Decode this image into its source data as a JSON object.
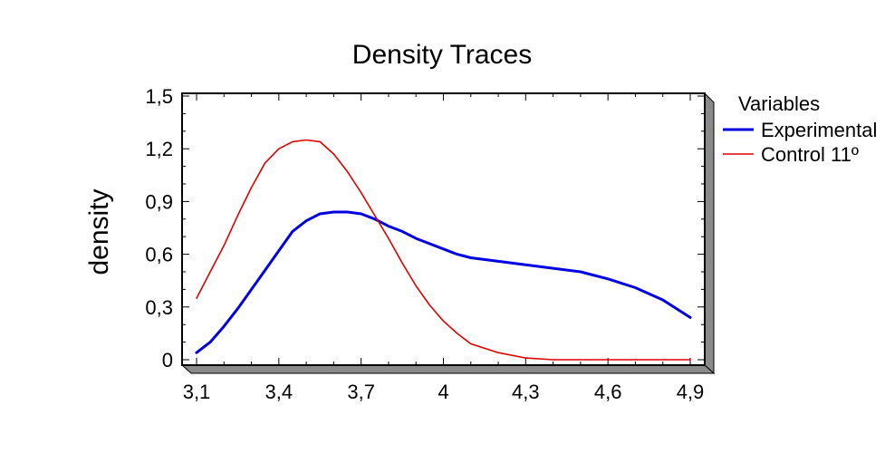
{
  "chart_data": {
    "type": "line",
    "title": "Density Traces",
    "xlabel": "",
    "ylabel": "density",
    "xlim": [
      3.1,
      4.9
    ],
    "ylim": [
      0,
      1.5
    ],
    "x_ticks": [
      3.1,
      3.4,
      3.7,
      4.0,
      4.3,
      4.6,
      4.9
    ],
    "x_tick_labels": [
      "3,1",
      "3,4",
      "3,7",
      "4",
      "4,3",
      "4,6",
      "4,9"
    ],
    "y_ticks": [
      0,
      0.3,
      0.6,
      0.9,
      1.2,
      1.5
    ],
    "y_tick_labels": [
      "0",
      "0,3",
      "0,6",
      "0,9",
      "1,2",
      "1,5"
    ],
    "grid": false,
    "legend": {
      "title": "Variables",
      "position": "right"
    },
    "series": [
      {
        "name": "Experimental",
        "color": "#0000e0",
        "x": [
          3.1,
          3.15,
          3.2,
          3.25,
          3.3,
          3.35,
          3.4,
          3.45,
          3.5,
          3.55,
          3.6,
          3.65,
          3.7,
          3.75,
          3.8,
          3.85,
          3.9,
          3.95,
          4.0,
          4.05,
          4.1,
          4.2,
          4.3,
          4.4,
          4.5,
          4.6,
          4.7,
          4.8,
          4.9
        ],
        "y": [
          0.04,
          0.1,
          0.19,
          0.29,
          0.4,
          0.51,
          0.62,
          0.73,
          0.79,
          0.83,
          0.84,
          0.84,
          0.83,
          0.8,
          0.76,
          0.73,
          0.69,
          0.66,
          0.63,
          0.6,
          0.58,
          0.56,
          0.54,
          0.52,
          0.5,
          0.46,
          0.41,
          0.34,
          0.24
        ]
      },
      {
        "name": "Control 11º",
        "color": "#e00000",
        "x": [
          3.1,
          3.15,
          3.2,
          3.25,
          3.3,
          3.35,
          3.4,
          3.45,
          3.5,
          3.55,
          3.6,
          3.65,
          3.7,
          3.75,
          3.8,
          3.85,
          3.9,
          3.95,
          4.0,
          4.05,
          4.1,
          4.2,
          4.3,
          4.4,
          4.5,
          4.6,
          4.7,
          4.8,
          4.9
        ],
        "y": [
          0.35,
          0.5,
          0.65,
          0.82,
          0.98,
          1.12,
          1.2,
          1.24,
          1.25,
          1.24,
          1.17,
          1.07,
          0.95,
          0.82,
          0.69,
          0.55,
          0.42,
          0.31,
          0.22,
          0.15,
          0.09,
          0.04,
          0.01,
          0.0,
          0.0,
          0.0,
          0.0,
          0.0,
          0.0
        ]
      }
    ]
  }
}
